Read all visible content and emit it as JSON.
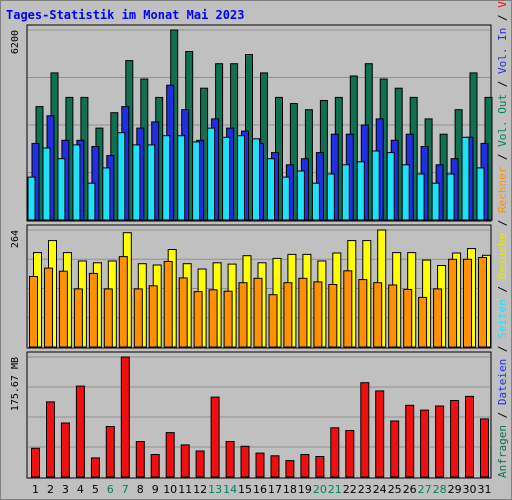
{
  "title": "Tages-Statistik im Monat Mai 2023",
  "colors": {
    "anfragen": "#107050",
    "dateien": "#2030e0",
    "seiten": "#20e0f8",
    "besuche": "#ffff00",
    "rechner": "#ff9000",
    "volumen": "#ee1010",
    "weekday": "#000000",
    "weekend": "#008060",
    "title": "#0000ff",
    "bg": "#c0c0c0"
  },
  "side_labels": {
    "panel1": [
      {
        "text": "Anfragen",
        "color": "#107050"
      },
      {
        "text": " / ",
        "color": "#000000"
      },
      {
        "text": "Dateien",
        "color": "#2030e0"
      },
      {
        "text": " / ",
        "color": "#000000"
      },
      {
        "text": "Seiten",
        "color": "#20e0f8"
      },
      {
        "text": " / ",
        "color": "#000000"
      },
      {
        "text": "Besuche",
        "color": "#e8e800"
      },
      {
        "text": " / ",
        "color": "#000000"
      },
      {
        "text": "Rechner",
        "color": "#ff9000"
      },
      {
        "text": " / ",
        "color": "#000000"
      },
      {
        "text": "Vol. Out",
        "color": "#008060"
      },
      {
        "text": " / ",
        "color": "#000000"
      },
      {
        "text": "Vol. In",
        "color": "#2030e0"
      },
      {
        "text": " / ",
        "color": "#000000"
      },
      {
        "text": "Volumen",
        "color": "#ee1010"
      }
    ]
  },
  "chart_data": [
    {
      "type": "bar",
      "name": "hits",
      "ymax_label": "6200",
      "ymax": 6200,
      "categories": [
        "1",
        "2",
        "3",
        "4",
        "5",
        "6",
        "7",
        "8",
        "9",
        "10",
        "11",
        "12",
        "13",
        "14",
        "15",
        "16",
        "17",
        "18",
        "19",
        "20",
        "21",
        "22",
        "23",
        "24",
        "25",
        "26",
        "27",
        "28",
        "29",
        "30",
        "31"
      ],
      "series": [
        {
          "name": "Anfragen",
          "values": [
            3700,
            4800,
            4000,
            4000,
            3000,
            3500,
            5200,
            4600,
            4000,
            6200,
            5500,
            4300,
            5100,
            5100,
            5400,
            4800,
            4000,
            3800,
            3600,
            3900,
            4000,
            4700,
            5100,
            4600,
            4300,
            4000,
            3300,
            2800,
            3600,
            4800,
            4000
          ]
        },
        {
          "name": "Dateien",
          "values": [
            2500,
            3400,
            2600,
            2600,
            2400,
            2100,
            3700,
            3000,
            3200,
            4400,
            3600,
            2600,
            3300,
            3000,
            2900,
            2500,
            2200,
            1800,
            2000,
            2200,
            2800,
            2800,
            3100,
            3300,
            2600,
            2800,
            2400,
            1800,
            2000,
            2700,
            2500
          ]
        },
        {
          "name": "Seiten",
          "values": [
            1400,
            2350,
            2000,
            2450,
            1200,
            1700,
            2850,
            2450,
            2450,
            2750,
            2750,
            2550,
            3000,
            2700,
            2750,
            2650,
            2000,
            1400,
            1600,
            1200,
            1500,
            1800,
            1900,
            2250,
            2200,
            1800,
            1500,
            1200,
            1500,
            2700,
            1700
          ]
        }
      ]
    },
    {
      "type": "bar",
      "name": "visits",
      "ymax_label": "264",
      "ymax": 264,
      "series": [
        {
          "name": "Besuche",
          "values": [
            213,
            240,
            213,
            194,
            190,
            194,
            258,
            188,
            185,
            220,
            188,
            176,
            190,
            187,
            206,
            190,
            200,
            209,
            209,
            194,
            212,
            240,
            240,
            264,
            213,
            213,
            196,
            184,
            212,
            222,
            207
          ]
        },
        {
          "name": "Rechner",
          "values": [
            159,
            178,
            171,
            131,
            166,
            131,
            204,
            131,
            138,
            193,
            156,
            125,
            129,
            126,
            145,
            155,
            118,
            145,
            155,
            147,
            141,
            172,
            152,
            145,
            140,
            130,
            112,
            131,
            198,
            198,
            202
          ]
        }
      ]
    },
    {
      "type": "bar",
      "name": "volume",
      "ymax_label": "175.67 MB",
      "ymax": 175.67,
      "series": [
        {
          "name": "Volumen",
          "values": [
            42,
            110,
            79,
            133,
            28,
            74,
            175.67,
            52,
            33,
            65,
            47,
            38,
            117,
            52,
            45,
            35,
            31,
            24,
            33,
            30,
            72,
            68,
            138,
            126,
            82,
            105,
            98,
            104,
            112,
            118,
            85
          ]
        }
      ]
    }
  ],
  "weekend_days": [
    6,
    7,
    13,
    14,
    20,
    21,
    27,
    28
  ]
}
